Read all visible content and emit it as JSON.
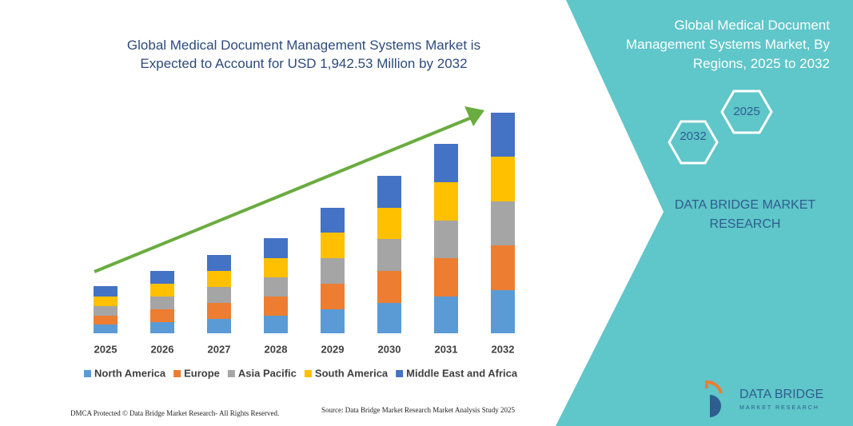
{
  "chart_data": {
    "type": "stacked_bar",
    "title": "Global Medical Document Management Systems Market is Expected to Account for USD 1,942.53 Million by 2032",
    "categories": [
      "2025",
      "2026",
      "2027",
      "2028",
      "2029",
      "2030",
      "2031",
      "2032"
    ],
    "series": [
      {
        "name": "North America",
        "color": "#5b9bd5",
        "values": [
          11,
          14,
          18,
          22,
          30,
          38,
          46,
          54
        ]
      },
      {
        "name": "Europe",
        "color": "#ed7d31",
        "values": [
          11,
          16,
          20,
          24,
          32,
          40,
          48,
          56
        ]
      },
      {
        "name": "Asia Pacific",
        "color": "#a5a5a5",
        "values": [
          12,
          16,
          20,
          24,
          32,
          40,
          47,
          55
        ]
      },
      {
        "name": "South America",
        "color": "#ffc000",
        "values": [
          12,
          16,
          20,
          24,
          32,
          39,
          48,
          56
        ]
      },
      {
        "name": "Middle East and Africa",
        "color": "#4472c4",
        "values": [
          13,
          16,
          20,
          25,
          31,
          40,
          48,
          55
        ]
      }
    ],
    "ylim": [
      0,
      276
    ]
  },
  "panel": {
    "title": "Global Medical Document Management Systems Market, By Regions, 2025 to 2032",
    "hexagons": [
      "2025",
      "2032"
    ],
    "brand": "DATA BRIDGE MARKET RESEARCH"
  },
  "logo": {
    "name": "DATA BRIDGE",
    "tagline": "MARKET RESEARCH"
  },
  "footer": {
    "dmca": "DMCA Protected © Data Bridge Market Research- All Rights Reserved.",
    "source": "Source: Data Bridge Market Research Market Analysis Study 2025"
  }
}
